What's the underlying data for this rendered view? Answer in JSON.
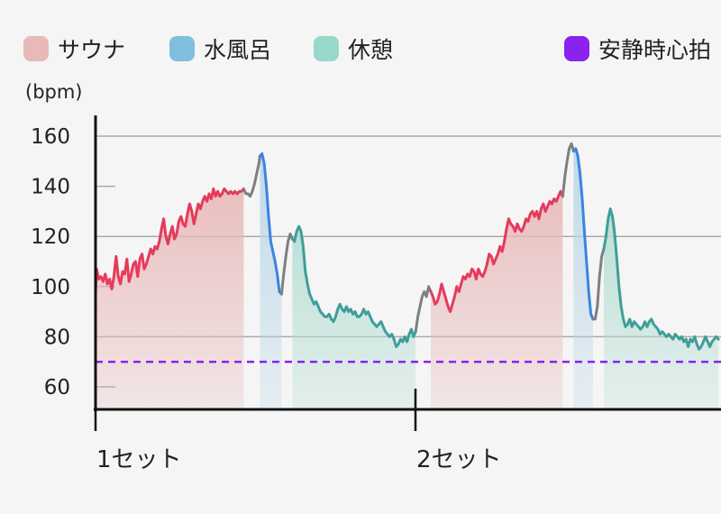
{
  "legend": [
    {
      "label": "サウナ",
      "color": "#e8b9b9"
    },
    {
      "label": "水風呂",
      "color": "#7fbfdc"
    },
    {
      "label": "休憩",
      "color": "#98d8cb"
    },
    {
      "label": "安静時心拍",
      "color": "#8a22f0"
    }
  ],
  "chart_data": {
    "type": "area",
    "ylabel": "(bpm)",
    "ylim": [
      50,
      165
    ],
    "y_ticks": [
      60,
      80,
      100,
      120,
      140,
      160
    ],
    "grid": true,
    "x_markers": [
      "1セット",
      "2セット"
    ],
    "resting_hr": 70,
    "phase_colors": {
      "sauna": {
        "line": "#e63a5c",
        "fill": "#e8b9b9"
      },
      "cold": {
        "line": "#3a84e0",
        "fill": "#b9d6e8"
      },
      "rest": {
        "line": "#3e9e9a",
        "fill": "#b4ddd3"
      },
      "transition": {
        "line": "#7f7f7f"
      }
    },
    "series": [
      {
        "phase": "sauna",
        "points": [
          [
            0,
            98
          ],
          [
            1,
            107
          ],
          [
            3,
            103
          ],
          [
            5,
            104
          ],
          [
            7,
            102
          ],
          [
            9,
            105
          ],
          [
            11,
            101
          ],
          [
            13,
            103
          ],
          [
            15,
            99
          ],
          [
            17,
            104
          ],
          [
            19,
            112
          ],
          [
            21,
            104
          ],
          [
            23,
            101
          ],
          [
            25,
            106
          ],
          [
            27,
            105
          ],
          [
            29,
            111
          ],
          [
            31,
            102
          ],
          [
            33,
            105
          ],
          [
            35,
            109
          ],
          [
            37,
            110
          ],
          [
            39,
            104
          ],
          [
            41,
            111
          ],
          [
            43,
            113
          ],
          [
            45,
            107
          ],
          [
            47,
            109
          ],
          [
            49,
            112
          ],
          [
            51,
            115
          ],
          [
            53,
            113
          ],
          [
            55,
            116
          ],
          [
            57,
            115
          ],
          [
            59,
            118
          ],
          [
            61,
            123
          ],
          [
            63,
            127
          ],
          [
            65,
            120
          ],
          [
            67,
            117
          ],
          [
            69,
            121
          ],
          [
            71,
            124
          ],
          [
            73,
            119
          ],
          [
            75,
            121
          ],
          [
            77,
            126
          ],
          [
            79,
            128
          ],
          [
            81,
            125
          ],
          [
            83,
            124
          ],
          [
            85,
            129
          ],
          [
            87,
            133
          ],
          [
            89,
            130
          ],
          [
            91,
            125
          ],
          [
            93,
            129
          ],
          [
            95,
            133
          ],
          [
            97,
            131
          ],
          [
            99,
            134
          ],
          [
            101,
            136
          ],
          [
            103,
            134
          ],
          [
            105,
            137
          ],
          [
            107,
            135
          ],
          [
            109,
            139
          ],
          [
            111,
            136
          ],
          [
            113,
            138
          ],
          [
            115,
            136
          ],
          [
            117,
            137
          ],
          [
            119,
            139
          ],
          [
            121,
            138
          ],
          [
            123,
            137
          ],
          [
            125,
            138
          ],
          [
            127,
            137
          ],
          [
            129,
            138
          ],
          [
            131,
            137
          ],
          [
            133,
            138
          ],
          [
            135,
            138
          ],
          [
            137,
            139
          ]
        ]
      },
      {
        "phase": "transition",
        "points": [
          [
            137,
            139
          ],
          [
            139,
            137
          ],
          [
            141,
            137
          ],
          [
            143,
            136
          ],
          [
            145,
            138
          ],
          [
            147,
            141
          ],
          [
            149,
            145
          ],
          [
            151,
            149
          ],
          [
            152,
            152
          ]
        ]
      },
      {
        "phase": "cold",
        "points": [
          [
            152,
            152
          ],
          [
            154,
            153
          ],
          [
            156,
            149
          ],
          [
            158,
            140
          ],
          [
            160,
            128
          ],
          [
            162,
            118
          ],
          [
            164,
            114
          ],
          [
            166,
            110
          ],
          [
            168,
            105
          ],
          [
            170,
            98
          ],
          [
            172,
            97
          ]
        ]
      },
      {
        "phase": "transition",
        "points": [
          [
            172,
            97
          ],
          [
            174,
            105
          ],
          [
            176,
            112
          ],
          [
            178,
            118
          ],
          [
            180,
            121
          ],
          [
            182,
            119
          ]
        ]
      },
      {
        "phase": "rest",
        "points": [
          [
            182,
            119
          ],
          [
            184,
            118
          ],
          [
            186,
            122
          ],
          [
            188,
            124
          ],
          [
            190,
            122
          ],
          [
            192,
            116
          ],
          [
            194,
            106
          ],
          [
            196,
            101
          ],
          [
            198,
            97
          ],
          [
            200,
            95
          ],
          [
            202,
            93
          ],
          [
            204,
            94
          ],
          [
            206,
            92
          ],
          [
            208,
            90
          ],
          [
            210,
            89
          ],
          [
            212,
            88
          ],
          [
            214,
            88
          ],
          [
            216,
            89
          ],
          [
            218,
            87
          ],
          [
            220,
            86
          ],
          [
            222,
            88
          ],
          [
            224,
            91
          ],
          [
            226,
            93
          ],
          [
            228,
            91
          ],
          [
            230,
            90
          ],
          [
            232,
            92
          ],
          [
            234,
            90
          ],
          [
            236,
            91
          ],
          [
            238,
            89
          ],
          [
            240,
            90
          ],
          [
            242,
            88
          ],
          [
            244,
            88
          ],
          [
            246,
            89
          ],
          [
            248,
            91
          ],
          [
            250,
            89
          ],
          [
            252,
            90
          ],
          [
            254,
            88
          ],
          [
            256,
            86
          ],
          [
            258,
            85
          ],
          [
            260,
            84
          ],
          [
            262,
            85
          ],
          [
            264,
            86
          ],
          [
            266,
            84
          ],
          [
            268,
            82
          ],
          [
            270,
            81
          ],
          [
            272,
            80
          ],
          [
            274,
            81
          ],
          [
            276,
            79
          ],
          [
            278,
            76
          ],
          [
            280,
            77
          ],
          [
            282,
            79
          ],
          [
            284,
            78
          ],
          [
            286,
            80
          ],
          [
            288,
            78
          ],
          [
            290,
            81
          ],
          [
            292,
            83
          ],
          [
            294,
            80
          ],
          [
            296,
            82
          ]
        ]
      },
      {
        "phase": "transition",
        "points": [
          [
            296,
            82
          ],
          [
            298,
            88
          ],
          [
            300,
            92
          ],
          [
            302,
            96
          ],
          [
            304,
            98
          ],
          [
            306,
            96
          ],
          [
            308,
            100
          ],
          [
            310,
            98
          ]
        ]
      },
      {
        "phase": "sauna",
        "points": [
          [
            310,
            98
          ],
          [
            312,
            96
          ],
          [
            314,
            93
          ],
          [
            316,
            94
          ],
          [
            318,
            97
          ],
          [
            320,
            101
          ],
          [
            322,
            98
          ],
          [
            324,
            95
          ],
          [
            326,
            92
          ],
          [
            328,
            90
          ],
          [
            330,
            93
          ],
          [
            332,
            96
          ],
          [
            334,
            100
          ],
          [
            336,
            98
          ],
          [
            338,
            101
          ],
          [
            340,
            104
          ],
          [
            342,
            103
          ],
          [
            344,
            105
          ],
          [
            346,
            104
          ],
          [
            348,
            107
          ],
          [
            350,
            106
          ],
          [
            352,
            103
          ],
          [
            354,
            107
          ],
          [
            356,
            105
          ],
          [
            358,
            104
          ],
          [
            360,
            106
          ],
          [
            362,
            109
          ],
          [
            364,
            113
          ],
          [
            366,
            112
          ],
          [
            368,
            109
          ],
          [
            370,
            111
          ],
          [
            372,
            113
          ],
          [
            374,
            116
          ],
          [
            376,
            114
          ],
          [
            378,
            118
          ],
          [
            380,
            123
          ],
          [
            382,
            127
          ],
          [
            384,
            125
          ],
          [
            386,
            124
          ],
          [
            388,
            122
          ],
          [
            390,
            125
          ],
          [
            392,
            123
          ],
          [
            394,
            122
          ],
          [
            396,
            124
          ],
          [
            398,
            127
          ],
          [
            400,
            126
          ],
          [
            402,
            129
          ],
          [
            404,
            130
          ],
          [
            406,
            128
          ],
          [
            408,
            130
          ],
          [
            410,
            127
          ],
          [
            412,
            131
          ],
          [
            414,
            133
          ],
          [
            416,
            130
          ],
          [
            418,
            132
          ],
          [
            420,
            134
          ],
          [
            422,
            133
          ],
          [
            424,
            135
          ],
          [
            426,
            134
          ],
          [
            428,
            136
          ],
          [
            430,
            138
          ],
          [
            432,
            136
          ]
        ]
      },
      {
        "phase": "transition",
        "points": [
          [
            432,
            136
          ],
          [
            434,
            144
          ],
          [
            436,
            150
          ],
          [
            438,
            155
          ],
          [
            440,
            157
          ],
          [
            442,
            154
          ]
        ]
      },
      {
        "phase": "cold",
        "points": [
          [
            442,
            154
          ],
          [
            444,
            155
          ],
          [
            446,
            152
          ],
          [
            448,
            145
          ],
          [
            450,
            135
          ],
          [
            452,
            122
          ],
          [
            454,
            110
          ],
          [
            456,
            98
          ],
          [
            458,
            89
          ],
          [
            460,
            87
          ]
        ]
      },
      {
        "phase": "transition",
        "points": [
          [
            460,
            87
          ],
          [
            462,
            87
          ],
          [
            464,
            92
          ],
          [
            466,
            104
          ],
          [
            468,
            112
          ],
          [
            470,
            115
          ]
        ]
      },
      {
        "phase": "rest",
        "points": [
          [
            470,
            115
          ],
          [
            472,
            120
          ],
          [
            474,
            127
          ],
          [
            476,
            131
          ],
          [
            478,
            128
          ],
          [
            480,
            121
          ],
          [
            482,
            111
          ],
          [
            484,
            100
          ],
          [
            486,
            92
          ],
          [
            488,
            87
          ],
          [
            490,
            84
          ],
          [
            492,
            85
          ],
          [
            494,
            87
          ],
          [
            496,
            84
          ],
          [
            498,
            86
          ],
          [
            500,
            85
          ],
          [
            502,
            84
          ],
          [
            504,
            83
          ],
          [
            506,
            84
          ],
          [
            508,
            86
          ],
          [
            510,
            84
          ],
          [
            512,
            86
          ],
          [
            514,
            87
          ],
          [
            516,
            85
          ],
          [
            518,
            84
          ],
          [
            520,
            83
          ],
          [
            522,
            81
          ],
          [
            524,
            82
          ],
          [
            526,
            81
          ],
          [
            528,
            80
          ],
          [
            530,
            81
          ],
          [
            532,
            80
          ],
          [
            534,
            79
          ],
          [
            536,
            81
          ],
          [
            538,
            80
          ],
          [
            540,
            79
          ],
          [
            542,
            80
          ],
          [
            544,
            78
          ],
          [
            546,
            79
          ],
          [
            548,
            76
          ],
          [
            550,
            79
          ],
          [
            552,
            78
          ],
          [
            554,
            80
          ],
          [
            556,
            77
          ],
          [
            558,
            75
          ],
          [
            560,
            76
          ],
          [
            562,
            78
          ],
          [
            564,
            80
          ],
          [
            566,
            78
          ],
          [
            568,
            76
          ],
          [
            570,
            78
          ],
          [
            572,
            79
          ],
          [
            574,
            80
          ],
          [
            576,
            79
          ]
        ]
      }
    ]
  }
}
